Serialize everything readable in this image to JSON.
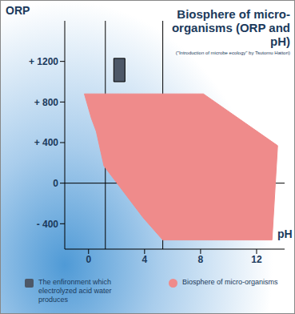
{
  "chart_data": {
    "type": "polygon",
    "title": "Biosphere of micro-organisms (ORP and pH)",
    "subtitle": "(\"Introduction of microbe ecology\" by Tsutomu Hattori)",
    "x_label": "pH",
    "y_label": "ORP",
    "xlim": [
      -1.7,
      14
    ],
    "ylim": [
      -650,
      1600
    ],
    "xticks": [
      0,
      4,
      8,
      12
    ],
    "yticks": [
      {
        "value": 1200,
        "label": "+ 1200"
      },
      {
        "value": 800,
        "label": "+ 800"
      },
      {
        "value": 400,
        "label": "+ 400"
      },
      0,
      {
        "value": -400,
        "label": "- 400"
      }
    ],
    "grid": false,
    "legend": "bottom",
    "vlines": [
      1.2,
      5.3
    ],
    "hlines": [
      0
    ],
    "series": [
      {
        "name": "The enfironment which electrolyzed acid water produces",
        "type": "polygon",
        "marker": "square",
        "color": "#4d5868",
        "x": [
          1.8,
          2.6,
          2.6,
          1.8
        ],
        "values": [
          1000,
          1000,
          1230,
          1230
        ]
      },
      {
        "name": "Biosphere of micro-organisms",
        "type": "polygon",
        "marker": "circle",
        "color": "#ef8b8b",
        "x": [
          -0.3,
          8.2,
          13.5,
          13.1,
          5.3,
          3.9,
          1.1,
          0.55,
          0.2
        ],
        "values": [
          880,
          880,
          370,
          -560,
          -560,
          -340,
          170,
          510,
          640
        ]
      }
    ]
  }
}
